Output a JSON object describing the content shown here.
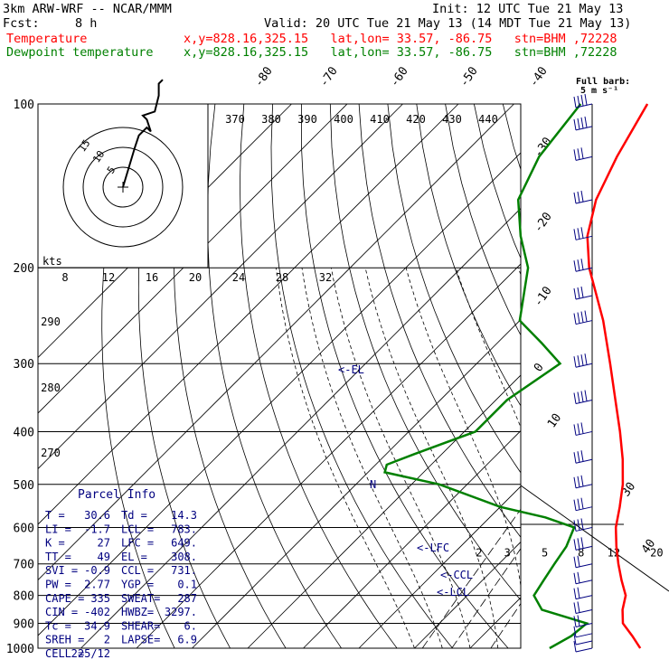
{
  "header": {
    "model": "3km ARW-WRF -- NCAR/MMM",
    "init": "Init: 12 UTC Tue 21 May 13",
    "fcst_label": "Fcst:",
    "fcst_value": "8 h",
    "valid": "Valid: 20 UTC Tue 21 May 13 (14 MDT Tue 21 May 13)",
    "temp_label": "Temperature",
    "temp_info": "x,y=828.16,325.15   lat,lon= 33.57, -86.75   stn=BHM ,72228",
    "dew_label": "Dewpoint temperature",
    "dew_info": "x,y=828.16,325.15   lat,lon= 33.57, -86.75   stn=BHM ,72228"
  },
  "barb_legend": {
    "line1": "Full barb:",
    "line2": "5 m s⁻¹"
  },
  "hodograph": {
    "rings": [
      "5",
      "10",
      "15"
    ],
    "unit": "kts",
    "trace_kts": [
      [
        0,
        0
      ],
      [
        3,
        10
      ],
      [
        4,
        13
      ],
      [
        6,
        15
      ],
      [
        7,
        14
      ],
      [
        6,
        17
      ],
      [
        5,
        18
      ],
      [
        8,
        19
      ],
      [
        9,
        23
      ],
      [
        9,
        26
      ],
      [
        10,
        27
      ]
    ]
  },
  "parcel": {
    "title": "Parcel Info",
    "rows": [
      [
        "T  =",
        "30.6",
        "Td =",
        "14.3"
      ],
      [
        "LI =",
        "-1.7",
        "LCL =",
        "783."
      ],
      [
        "K  =",
        "27",
        "LFC =",
        "649."
      ],
      [
        "TT =",
        "49",
        "EL  =",
        "308."
      ],
      [
        "SVI =",
        "-0.9",
        "CCL =",
        "731."
      ],
      [
        "PW =",
        "2.77",
        "YGP =",
        "0.1"
      ],
      [
        "CAPE =",
        "335",
        "SWEAT=",
        "287"
      ],
      [
        "CIN =",
        "-402",
        "HWBZ=",
        "3297."
      ],
      [
        "Tc =",
        "34.9",
        "SHEAR=",
        "6."
      ],
      [
        "SREH =",
        "2",
        "LAPSE=",
        "6.9"
      ],
      [
        "CELL =",
        "225/12",
        "",
        ""
      ]
    ]
  },
  "levels": {
    "lfc": "<-LFC",
    "ccl": "<-CCL",
    "lcl": "<-LCL",
    "el": "<-EL",
    "n": "N"
  },
  "colors": {
    "temperature": "#ff0000",
    "dewpoint": "#008000",
    "levels": "#000080",
    "parcel": "#000080",
    "wind": "#000080"
  },
  "chart_data": {
    "type": "line",
    "title": "",
    "xlabel": "",
    "ylabel": "",
    "pressure_ticks": [
      100,
      200,
      300,
      400,
      500,
      600,
      700,
      800,
      900,
      1000
    ],
    "ylim": [
      1000,
      100
    ],
    "isotherm_labels": [
      "-80",
      "-70",
      "-60",
      "-50",
      "-40",
      "-30",
      "-20",
      "-10",
      "0",
      "10",
      "30",
      "40"
    ],
    "isotherm_values": [
      -80,
      -70,
      -60,
      -50,
      -40,
      -30,
      -20,
      -10,
      0,
      10,
      30,
      40
    ],
    "theta_labels": [
      "370",
      "380",
      "390",
      "400",
      "410",
      "420",
      "430",
      "440"
    ],
    "dry_adiabat_labels": [
      "290",
      "280",
      "270"
    ],
    "mixing_ratio_labels": [
      "2",
      "3",
      "5",
      "8",
      "12",
      "20"
    ],
    "mixing_ratio_values": [
      2,
      3,
      5,
      8,
      12,
      20
    ],
    "hodo_axis_labels": [
      "8",
      "12",
      "16",
      "20",
      "24",
      "28",
      "32"
    ],
    "series": [
      {
        "name": "Temperature",
        "points": [
          [
            1000,
            30.6
          ],
          [
            950,
            27
          ],
          [
            900,
            23
          ],
          [
            850,
            20.5
          ],
          [
            800,
            18.5
          ],
          [
            750,
            15
          ],
          [
            700,
            11.5
          ],
          [
            650,
            8
          ],
          [
            600,
            4.5
          ],
          [
            550,
            1.5
          ],
          [
            500,
            -2
          ],
          [
            450,
            -6.5
          ],
          [
            400,
            -12
          ],
          [
            350,
            -18.5
          ],
          [
            300,
            -26
          ],
          [
            250,
            -35
          ],
          [
            200,
            -47
          ],
          [
            175,
            -53
          ],
          [
            150,
            -58
          ],
          [
            125,
            -62
          ],
          [
            100,
            -66
          ]
        ]
      },
      {
        "name": "Dewpoint temperature",
        "points": [
          [
            1000,
            14.3
          ],
          [
            950,
            16
          ],
          [
            900,
            16.5
          ],
          [
            850,
            6
          ],
          [
            800,
            2
          ],
          [
            750,
            1
          ],
          [
            700,
            0
          ],
          [
            650,
            -1
          ],
          [
            600,
            -3
          ],
          [
            575,
            -10
          ],
          [
            550,
            -20
          ],
          [
            500,
            -35
          ],
          [
            475,
            -47
          ],
          [
            460,
            -48
          ],
          [
            440,
            -45
          ],
          [
            400,
            -38
          ],
          [
            350,
            -38
          ],
          [
            300,
            -35
          ],
          [
            275,
            -42
          ],
          [
            250,
            -50
          ],
          [
            200,
            -58
          ],
          [
            175,
            -65
          ],
          [
            150,
            -72
          ],
          [
            125,
            -76
          ],
          [
            100,
            -78
          ]
        ]
      }
    ],
    "winds": [
      {
        "p": 1000,
        "speed_ms": 5,
        "dir": 180
      },
      {
        "p": 970,
        "speed_ms": 7,
        "dir": 190
      },
      {
        "p": 940,
        "speed_ms": 8,
        "dir": 200
      },
      {
        "p": 900,
        "speed_ms": 10,
        "dir": 210
      },
      {
        "p": 850,
        "speed_ms": 10,
        "dir": 215
      },
      {
        "p": 800,
        "speed_ms": 10,
        "dir": 220
      },
      {
        "p": 750,
        "speed_ms": 12,
        "dir": 225
      },
      {
        "p": 700,
        "speed_ms": 12,
        "dir": 225
      },
      {
        "p": 650,
        "speed_ms": 14,
        "dir": 230
      },
      {
        "p": 600,
        "speed_ms": 15,
        "dir": 230
      },
      {
        "p": 550,
        "speed_ms": 15,
        "dir": 235
      },
      {
        "p": 500,
        "speed_ms": 15,
        "dir": 240
      },
      {
        "p": 450,
        "speed_ms": 15,
        "dir": 240
      },
      {
        "p": 400,
        "speed_ms": 17,
        "dir": 245
      },
      {
        "p": 350,
        "speed_ms": 20,
        "dir": 245
      },
      {
        "p": 300,
        "speed_ms": 20,
        "dir": 250
      },
      {
        "p": 250,
        "speed_ms": 20,
        "dir": 250
      },
      {
        "p": 225,
        "speed_ms": 18,
        "dir": 250
      },
      {
        "p": 200,
        "speed_ms": 18,
        "dir": 255
      },
      {
        "p": 175,
        "speed_ms": 18,
        "dir": 255
      },
      {
        "p": 150,
        "speed_ms": 18,
        "dir": 260
      },
      {
        "p": 125,
        "speed_ms": 18,
        "dir": 260
      },
      {
        "p": 110,
        "speed_ms": 20,
        "dir": 260
      },
      {
        "p": 100,
        "speed_ms": 20,
        "dir": 265
      }
    ]
  }
}
